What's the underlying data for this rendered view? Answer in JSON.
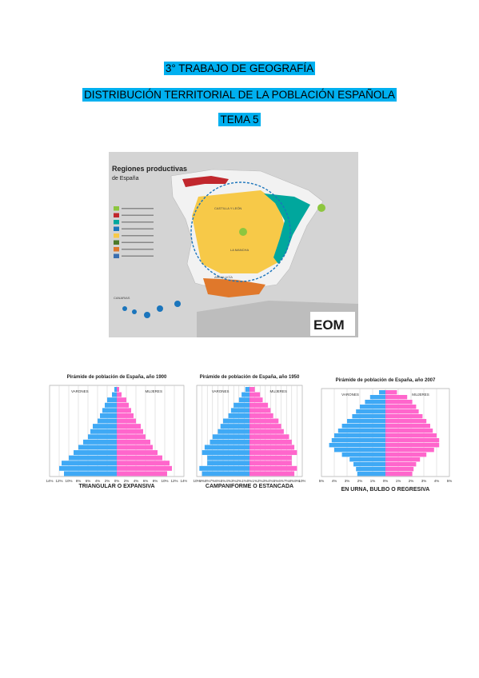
{
  "header": {
    "line1": "3° TRABAJO DE GEOGRAFÍA",
    "line2": "DISTRIBUCIÓN TERRITORIAL DE LA POBLACIÓN ESPAÑOLA",
    "line3": "TEMA 5"
  },
  "map": {
    "title": "Regiones productivas",
    "subtitle": "de España",
    "logo": "EOM",
    "legend_colors": [
      "#8dc63f",
      "#c1272d",
      "#00a79d",
      "#1b75bc",
      "#f7c948",
      "#4d7a2a",
      "#e0782b",
      "#3a6fb0"
    ],
    "region_labels": [
      "CASTILLA Y LEÓN",
      "LA MANCHA",
      "ANDALUCÍA",
      "CANARIAS"
    ]
  },
  "pyramids": [
    {
      "title": "Pirámide de población de España, año 1900",
      "left_label": "VARONES",
      "right_label": "MUJERES",
      "ticks": [
        "14%",
        "12%",
        "10%",
        "8%",
        "6%",
        "4%",
        "2%",
        "0%",
        "2%",
        "4%",
        "6%",
        "8%",
        "10%",
        "12%",
        "14%"
      ],
      "caption": "TRIANGULAR O EXPANSIVA",
      "male": [
        11,
        12,
        11.5,
        10,
        9,
        8,
        7,
        6,
        5.5,
        5,
        4,
        3.5,
        3,
        2.5,
        2,
        1,
        0.5
      ],
      "female": [
        10.5,
        11.5,
        11,
        9.5,
        8.5,
        7.5,
        7,
        6,
        5.5,
        5,
        4,
        3.5,
        3,
        2.5,
        2,
        1,
        0.5
      ],
      "max": 14
    },
    {
      "title": "Pirámide de población de España, año 1950",
      "left_label": "VARONES",
      "right_label": "MUJERES",
      "ticks": [
        "10%",
        "9%",
        "8%",
        "7%",
        "6%",
        "5%",
        "4%",
        "3%",
        "2%",
        "1%",
        "0%",
        "1%",
        "2%",
        "3%",
        "4%",
        "5%",
        "6%",
        "7%",
        "8%",
        "9%",
        "10%"
      ],
      "caption": "CAMPANIFORME O ESTANCADA",
      "male": [
        9,
        9.5,
        8,
        8,
        9,
        8.5,
        7.5,
        7,
        6,
        5.5,
        5,
        4,
        3.5,
        3,
        2,
        1.5,
        0.8
      ],
      "female": [
        8.5,
        9,
        8,
        8,
        9,
        8.5,
        8,
        7.5,
        6.5,
        6,
        5.5,
        4.5,
        4,
        3.5,
        2.5,
        2,
        1
      ],
      "max": 10
    },
    {
      "title": "Pirámide de población de España, año 2007",
      "left_label": "VARONES",
      "right_label": "MUJERES",
      "ticks": [
        "5%",
        "4%",
        "3%",
        "2%",
        "1%",
        "0%",
        "1%",
        "2%",
        "3%",
        "4%",
        "5%"
      ],
      "caption": "EN URNA, BULBO O REGRESIVA",
      "male": [
        2.2,
        2.3,
        2.5,
        2.8,
        3.4,
        4,
        4.4,
        4.2,
        4,
        3.7,
        3.4,
        3,
        2.6,
        2.3,
        2,
        1.6,
        1.2,
        0.5
      ],
      "female": [
        2.1,
        2.2,
        2.4,
        2.7,
        3.2,
        3.8,
        4.2,
        4.2,
        4,
        3.7,
        3.5,
        3.2,
        2.9,
        2.6,
        2.4,
        2.1,
        1.7,
        0.9
      ],
      "max": 5
    }
  ]
}
